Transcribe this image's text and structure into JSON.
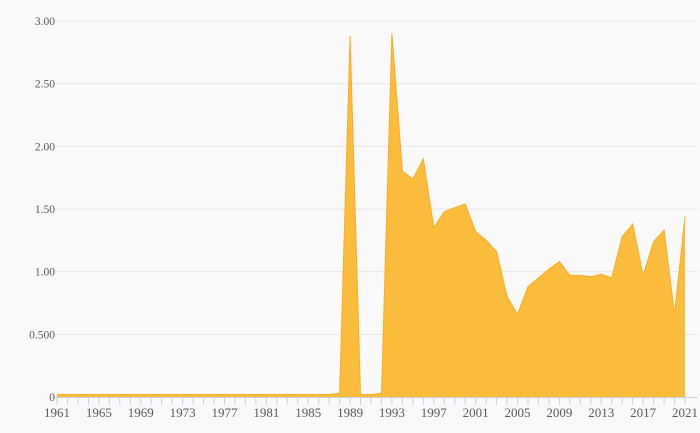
{
  "chart_data": {
    "type": "area",
    "title": "",
    "xlabel": "",
    "ylabel": "",
    "legend": "none",
    "grid": "horizontal",
    "xlim": [
      1961,
      2021
    ],
    "ylim": [
      0,
      3
    ],
    "x_start_year": 1961,
    "x_end_year": 2021,
    "x_tick_step_years": 1,
    "x_label_step_years": 4,
    "x_tick_labels": [
      "1961",
      "1965",
      "1969",
      "1973",
      "1977",
      "1981",
      "1985",
      "1989",
      "1993",
      "1997",
      "2001",
      "2005",
      "2009",
      "2013",
      "2017",
      "2021"
    ],
    "y_tick_values": [
      0,
      0.5,
      1.0,
      1.5,
      2.0,
      2.5,
      3.0
    ],
    "y_tick_labels": [
      "0",
      "0.500",
      "1.00",
      "1.50",
      "2.00",
      "2.50",
      "3.00"
    ],
    "x": [
      1961,
      1962,
      1963,
      1964,
      1965,
      1966,
      1967,
      1968,
      1969,
      1970,
      1971,
      1972,
      1973,
      1974,
      1975,
      1976,
      1977,
      1978,
      1979,
      1980,
      1981,
      1982,
      1983,
      1984,
      1985,
      1986,
      1987,
      1988,
      1989,
      1990,
      1991,
      1992,
      1993,
      1994,
      1995,
      1996,
      1997,
      1998,
      1999,
      2000,
      2001,
      2002,
      2003,
      2004,
      2005,
      2006,
      2007,
      2008,
      2009,
      2010,
      2011,
      2012,
      2013,
      2014,
      2015,
      2016,
      2017,
      2018,
      2019,
      2020,
      2021
    ],
    "values": [
      0.02,
      0.02,
      0.02,
      0.02,
      0.02,
      0.02,
      0.02,
      0.02,
      0.02,
      0.02,
      0.02,
      0.02,
      0.02,
      0.02,
      0.02,
      0.02,
      0.02,
      0.02,
      0.02,
      0.02,
      0.02,
      0.02,
      0.02,
      0.02,
      0.02,
      0.02,
      0.02,
      0.03,
      2.88,
      0.02,
      0.02,
      0.03,
      2.9,
      1.8,
      1.74,
      1.9,
      1.35,
      1.48,
      1.51,
      1.54,
      1.32,
      1.25,
      1.16,
      0.8,
      0.66,
      0.88,
      0.95,
      1.02,
      1.08,
      0.97,
      0.97,
      0.96,
      0.98,
      0.95,
      1.28,
      1.38,
      0.97,
      1.24,
      1.33,
      0.66,
      1.44
    ],
    "colors": {
      "area_fill": "#fbbc3b",
      "area_stroke": "#f7ad29",
      "gridline": "#e8e8e8",
      "axis_baseline": "#ccd2e4",
      "tick_mark": "#c9d0e8",
      "tick_label": "#595959",
      "background": "#f9f9f9"
    }
  }
}
